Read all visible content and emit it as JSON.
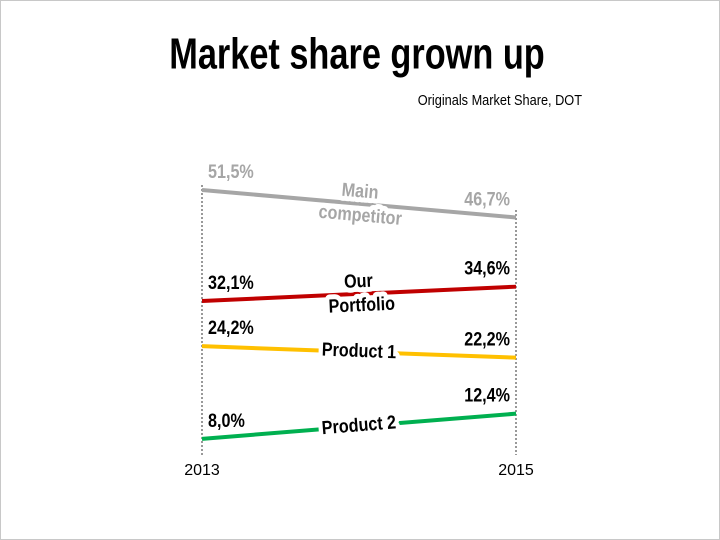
{
  "chart_data": {
    "type": "slope",
    "title": "Market share grown up",
    "subtitle": "Originals Market Share, DOT",
    "categories": [
      "2013",
      "2015"
    ],
    "ylim": [
      5,
      55
    ],
    "series": [
      {
        "name": "Main competitor",
        "color": "#a6a6a6",
        "values": [
          51.5,
          46.7
        ],
        "value_labels": [
          "51,5%",
          "46,7%"
        ]
      },
      {
        "name": "Our Portfolio",
        "color": "#c00000",
        "values": [
          32.1,
          34.6
        ],
        "value_labels": [
          "32,1%",
          "34,6%"
        ]
      },
      {
        "name": "Product 1",
        "color": "#ffc000",
        "values": [
          24.2,
          22.2
        ],
        "value_labels": [
          "24,2%",
          "22,2%"
        ]
      },
      {
        "name": "Product 2",
        "color": "#00b050",
        "values": [
          8.0,
          12.4
        ],
        "value_labels": [
          "8,0%",
          "12,4%"
        ]
      }
    ]
  }
}
